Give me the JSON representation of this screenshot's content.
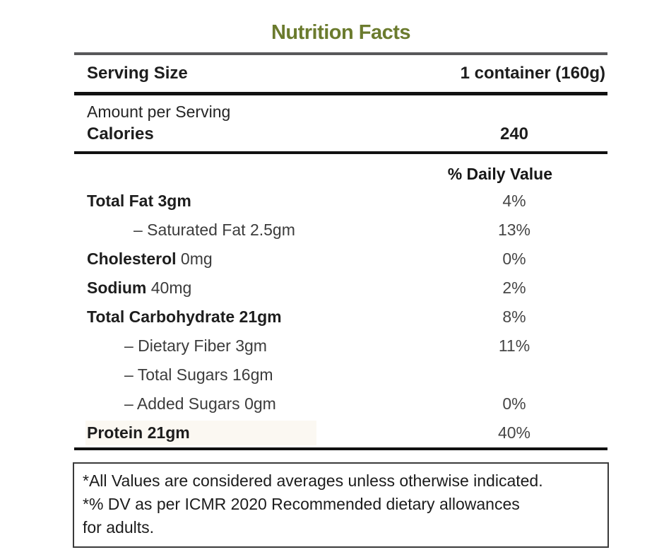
{
  "title": "Nutrition Facts",
  "colors": {
    "title_green": "#6b7b2e",
    "gray_rule": "#58585a",
    "black_rule": "#111111",
    "protein_highlight": "#fbf8f2",
    "percent_text": "#464646"
  },
  "serving": {
    "label": "Serving Size",
    "value": "1 container (160g)"
  },
  "amount_per_serving": "Amount per Serving",
  "calories": {
    "label": "Calories",
    "value": "240"
  },
  "daily_value_header": "% Daily Value",
  "nutrients": [
    {
      "name": "Total Fat",
      "amount": "3gm",
      "dv": "4%",
      "name_bold": true,
      "amount_bold": true,
      "indent": 0,
      "highlight": false
    },
    {
      "name": "– Saturated Fat",
      "amount": "2.5gm",
      "dv": "13%",
      "name_bold": false,
      "amount_bold": false,
      "indent": 2,
      "highlight": false
    },
    {
      "name": "Cholesterol",
      "amount": "0mg",
      "dv": "0%",
      "name_bold": true,
      "amount_bold": false,
      "indent": 0,
      "highlight": false
    },
    {
      "name": "Sodium",
      "amount": "40mg",
      "dv": "2%",
      "name_bold": true,
      "amount_bold": false,
      "indent": 0,
      "highlight": false
    },
    {
      "name": "Total Carbohydrate",
      "amount": "21gm",
      "dv": "8%",
      "name_bold": true,
      "amount_bold": true,
      "indent": 0,
      "highlight": false
    },
    {
      "name": "– Dietary Fiber",
      "amount": "3gm",
      "dv": "11%",
      "name_bold": false,
      "amount_bold": false,
      "indent": 1,
      "highlight": false
    },
    {
      "name": "– Total Sugars",
      "amount": "16gm",
      "dv": "",
      "name_bold": false,
      "amount_bold": false,
      "indent": 1,
      "highlight": false
    },
    {
      "name": "– Added Sugars",
      "amount": "0gm",
      "dv": "0%",
      "name_bold": false,
      "amount_bold": false,
      "indent": 1,
      "highlight": false
    },
    {
      "name": "Protein",
      "amount": "21gm",
      "dv": "40%",
      "name_bold": true,
      "amount_bold": true,
      "indent": 0,
      "highlight": true
    }
  ],
  "footnotes": [
    "*All Values are considered averages unless otherwise indicated.",
    "*% DV as per ICMR 2020 Recommended dietary allowances",
    "for adults."
  ]
}
